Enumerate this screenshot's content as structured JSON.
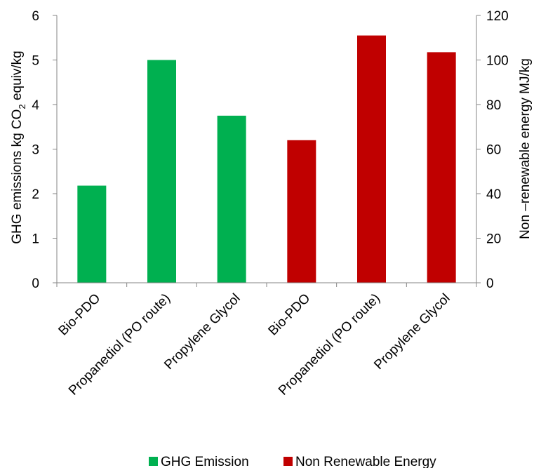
{
  "chart_data": {
    "type": "bar",
    "categories": [
      "Bio-PDO",
      "Propanediol (PO route)",
      "Propylene Glycol",
      "Bio-PDO",
      "Propanediol (PO route)",
      "Propylene Glycol"
    ],
    "series": [
      {
        "name": "GHG Emission",
        "axis": "left",
        "color": "#00b050",
        "values": [
          2.18,
          5.0,
          3.75,
          null,
          null,
          null
        ]
      },
      {
        "name": "Non Renewable Energy",
        "axis": "right",
        "color": "#c00000",
        "values": [
          null,
          null,
          null,
          64,
          111,
          103.5
        ]
      }
    ],
    "ylabel_left": "GHG emissions kg CO2 equiv/kg",
    "ylabel_left_parts": [
      "GHG emissions kg CO",
      "2",
      " equiv/kg"
    ],
    "ylabel_right": "Non –renewable energy MJ/kg",
    "ylim_left": [
      0,
      6
    ],
    "yticks_left": [
      0,
      1,
      2,
      3,
      4,
      5,
      6
    ],
    "ylim_right": [
      0,
      120
    ],
    "yticks_right": [
      0,
      20,
      40,
      60,
      80,
      100,
      120
    ],
    "grid": false,
    "legend_position": "bottom",
    "legend": [
      {
        "label": "GHG Emission",
        "color": "#00b050"
      },
      {
        "label": "Non Renewable Energy",
        "color": "#c00000"
      }
    ]
  }
}
